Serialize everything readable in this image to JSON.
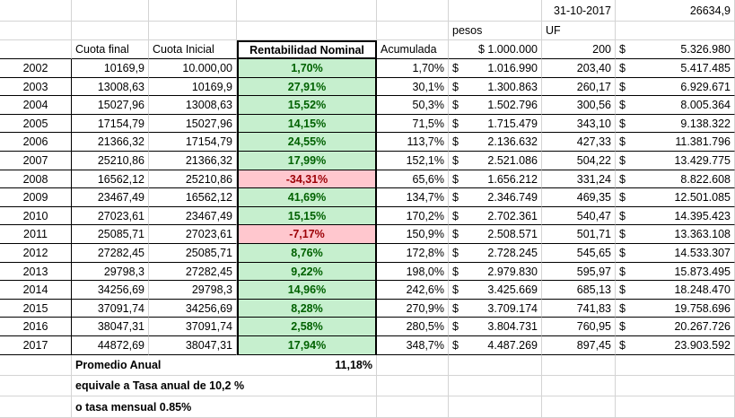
{
  "header_top": {
    "date": "31-10-2017",
    "uf_value": "26634,9",
    "pesos_label": "pesos",
    "uf_label": "UF"
  },
  "columns": {
    "cuota_final": "Cuota final",
    "cuota_inicial": "Cuota Inicial",
    "rentabilidad": "Rentabilidad Nominal",
    "acumulada": "Acumulada",
    "capital": "$ 1.000.000",
    "uf_units": "200",
    "uf_pesos_symbol": "$",
    "uf_pesos": "5.326.980"
  },
  "currency_symbol": "$",
  "rows": [
    {
      "year": "2002",
      "final": "10169,9",
      "inicial": "10.000,00",
      "rent": "1,70%",
      "rent_neg": false,
      "acum": "1,70%",
      "pesos": "1.016.990",
      "uf": "203,40",
      "ufpesos": "5.417.485"
    },
    {
      "year": "2003",
      "final": "13008,63",
      "inicial": "10169,9",
      "rent": "27,91%",
      "rent_neg": false,
      "acum": "30,1%",
      "pesos": "1.300.863",
      "uf": "260,17",
      "ufpesos": "6.929.671"
    },
    {
      "year": "2004",
      "final": "15027,96",
      "inicial": "13008,63",
      "rent": "15,52%",
      "rent_neg": false,
      "acum": "50,3%",
      "pesos": "1.502.796",
      "uf": "300,56",
      "ufpesos": "8.005.364"
    },
    {
      "year": "2005",
      "final": "17154,79",
      "inicial": "15027,96",
      "rent": "14,15%",
      "rent_neg": false,
      "acum": "71,5%",
      "pesos": "1.715.479",
      "uf": "343,10",
      "ufpesos": "9.138.322"
    },
    {
      "year": "2006",
      "final": "21366,32",
      "inicial": "17154,79",
      "rent": "24,55%",
      "rent_neg": false,
      "acum": "113,7%",
      "pesos": "2.136.632",
      "uf": "427,33",
      "ufpesos": "11.381.796"
    },
    {
      "year": "2007",
      "final": "25210,86",
      "inicial": "21366,32",
      "rent": "17,99%",
      "rent_neg": false,
      "acum": "152,1%",
      "pesos": "2.521.086",
      "uf": "504,22",
      "ufpesos": "13.429.775"
    },
    {
      "year": "2008",
      "final": "16562,12",
      "inicial": "25210,86",
      "rent": "-34,31%",
      "rent_neg": true,
      "acum": "65,6%",
      "pesos": "1.656.212",
      "uf": "331,24",
      "ufpesos": "8.822.608"
    },
    {
      "year": "2009",
      "final": "23467,49",
      "inicial": "16562,12",
      "rent": "41,69%",
      "rent_neg": false,
      "acum": "134,7%",
      "pesos": "2.346.749",
      "uf": "469,35",
      "ufpesos": "12.501.085"
    },
    {
      "year": "2010",
      "final": "27023,61",
      "inicial": "23467,49",
      "rent": "15,15%",
      "rent_neg": false,
      "acum": "170,2%",
      "pesos": "2.702.361",
      "uf": "540,47",
      "ufpesos": "14.395.423"
    },
    {
      "year": "2011",
      "final": "25085,71",
      "inicial": "27023,61",
      "rent": "-7,17%",
      "rent_neg": true,
      "acum": "150,9%",
      "pesos": "2.508.571",
      "uf": "501,71",
      "ufpesos": "13.363.108"
    },
    {
      "year": "2012",
      "final": "27282,45",
      "inicial": "25085,71",
      "rent": "8,76%",
      "rent_neg": false,
      "acum": "172,8%",
      "pesos": "2.728.245",
      "uf": "545,65",
      "ufpesos": "14.533.307"
    },
    {
      "year": "2013",
      "final": "29798,3",
      "inicial": "27282,45",
      "rent": "9,22%",
      "rent_neg": false,
      "acum": "198,0%",
      "pesos": "2.979.830",
      "uf": "595,97",
      "ufpesos": "15.873.495"
    },
    {
      "year": "2014",
      "final": "34256,69",
      "inicial": "29798,3",
      "rent": "14,96%",
      "rent_neg": false,
      "acum": "242,6%",
      "pesos": "3.425.669",
      "uf": "685,13",
      "ufpesos": "18.248.470"
    },
    {
      "year": "2015",
      "final": "37091,74",
      "inicial": "34256,69",
      "rent": "8,28%",
      "rent_neg": false,
      "acum": "270,9%",
      "pesos": "3.709.174",
      "uf": "741,83",
      "ufpesos": "19.758.696"
    },
    {
      "year": "2016",
      "final": "38047,31",
      "inicial": "37091,74",
      "rent": "2,58%",
      "rent_neg": false,
      "acum": "280,5%",
      "pesos": "3.804.731",
      "uf": "760,95",
      "ufpesos": "20.267.726"
    },
    {
      "year": "2017",
      "final": "44872,69",
      "inicial": "38047,31",
      "rent": "17,94%",
      "rent_neg": false,
      "acum": "348,7%",
      "pesos": "4.487.269",
      "uf": "897,45",
      "ufpesos": "23.903.592"
    }
  ],
  "footer": {
    "promedio_label": "Promedio Anual",
    "promedio_value": "11,18%",
    "tasa_anual": "equivale a Tasa anual de 10,2 %",
    "tasa_mensual": "o tasa mensual 0.85%"
  },
  "colors": {
    "positive_fill": "#c6efce",
    "positive_text": "#006100",
    "negative_fill": "#ffc7ce",
    "negative_text": "#9c0006",
    "gridline": "#d4d4d4"
  }
}
